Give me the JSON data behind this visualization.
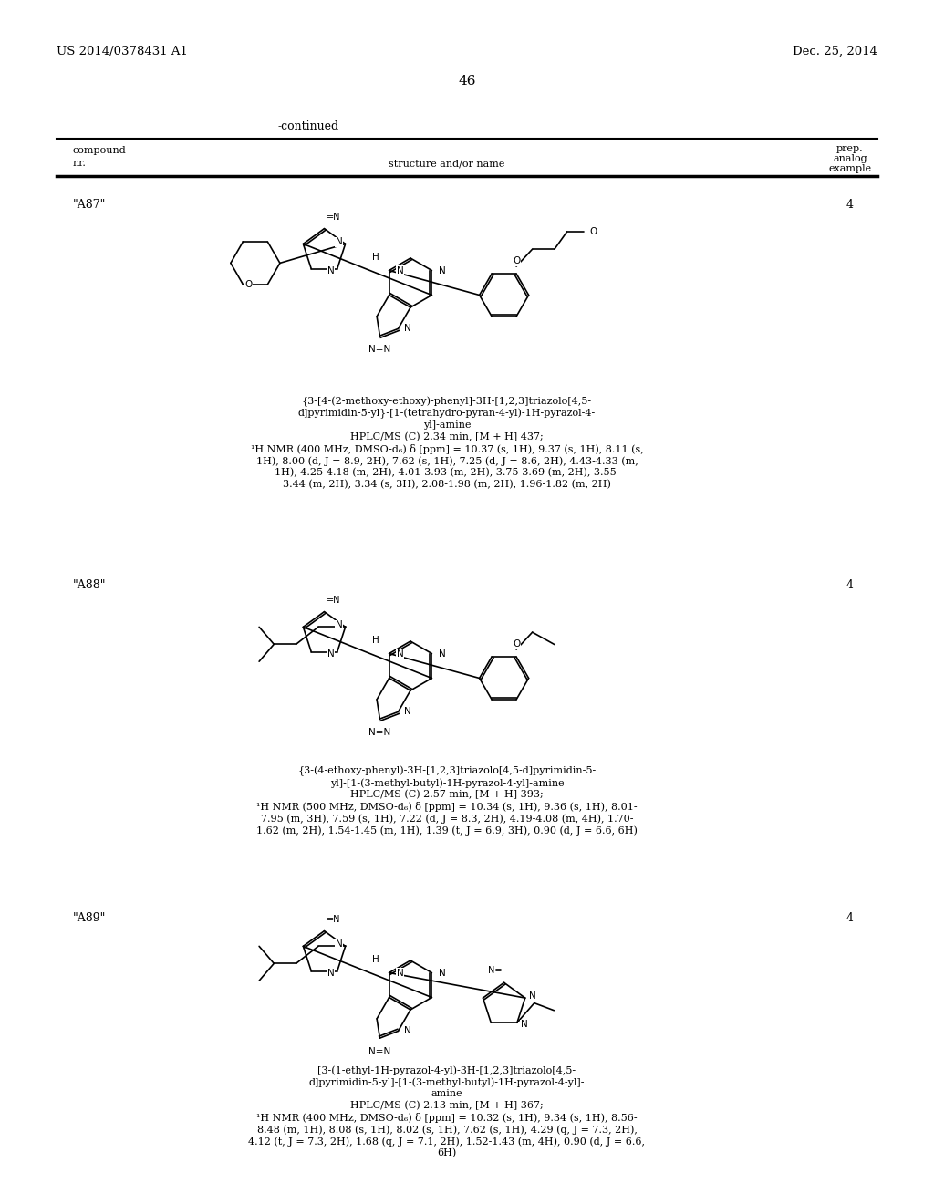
{
  "bg_color": "#ffffff",
  "header_left": "US 2014/0378431 A1",
  "header_right": "Dec. 25, 2014",
  "page_number": "46",
  "continued_text": "-continued",
  "a87_id": "\"A87\"",
  "a87_example": "4",
  "a87_name": [
    "{3-[4-(2-methoxy-ethoxy)-phenyl]-3H-[1,2,3]triazolo[4,5-",
    "d]pyrimidin-5-yl}-[1-(tetrahydro-pyran-4-yl)-1H-pyrazol-4-",
    "yl]-amine"
  ],
  "a87_data": [
    "HPLC/MS (C) 2.34 min, [M + H] 437;",
    "¹H NMR (400 MHz, DMSO-d₆) δ [ppm] = 10.37 (s, 1H), 9.37 (s, 1H), 8.11 (s,",
    "1H), 8.00 (d, J = 8.9, 2H), 7.62 (s, 1H), 7.25 (d, J = 8.6, 2H), 4.43-4.33 (m,",
    "1H), 4.25-4.18 (m, 2H), 4.01-3.93 (m, 2H), 3.75-3.69 (m, 2H), 3.55-",
    "3.44 (m, 2H), 3.34 (s, 3H), 2.08-1.98 (m, 2H), 1.96-1.82 (m, 2H)"
  ],
  "a88_id": "\"A88\"",
  "a88_example": "4",
  "a88_name": [
    "{3-(4-ethoxy-phenyl)-3H-[1,2,3]triazolo[4,5-d]pyrimidin-5-",
    "yl]-[1-(3-methyl-butyl)-1H-pyrazol-4-yl]-amine"
  ],
  "a88_data": [
    "HPLC/MS (C) 2.57 min, [M + H] 393;",
    "¹H NMR (500 MHz, DMSO-d₆) δ [ppm] = 10.34 (s, 1H), 9.36 (s, 1H), 8.01-",
    "7.95 (m, 3H), 7.59 (s, 1H), 7.22 (d, J = 8.3, 2H), 4.19-4.08 (m, 4H), 1.70-",
    "1.62 (m, 2H), 1.54-1.45 (m, 1H), 1.39 (t, J = 6.9, 3H), 0.90 (d, J = 6.6, 6H)"
  ],
  "a89_id": "\"A89\"",
  "a89_example": "4",
  "a89_name": [
    "[3-(1-ethyl-1H-pyrazol-4-yl)-3H-[1,2,3]triazolo[4,5-",
    "d]pyrimidin-5-yl]-[1-(3-methyl-butyl)-1H-pyrazol-4-yl]-",
    "amine"
  ],
  "a89_data": [
    "HPLC/MS (C) 2.13 min, [M + H] 367;",
    "¹H NMR (400 MHz, DMSO-d₆) δ [ppm] = 10.32 (s, 1H), 9.34 (s, 1H), 8.56-",
    "8.48 (m, 1H), 8.08 (s, 1H), 8.02 (s, 1H), 7.62 (s, 1H), 4.29 (q, J = 7.3, 2H),",
    "4.12 (t, J = 7.3, 2H), 1.68 (q, J = 7.1, 2H), 1.52-1.43 (m, 4H), 0.90 (d, J = 6.6,",
    "6H)"
  ]
}
